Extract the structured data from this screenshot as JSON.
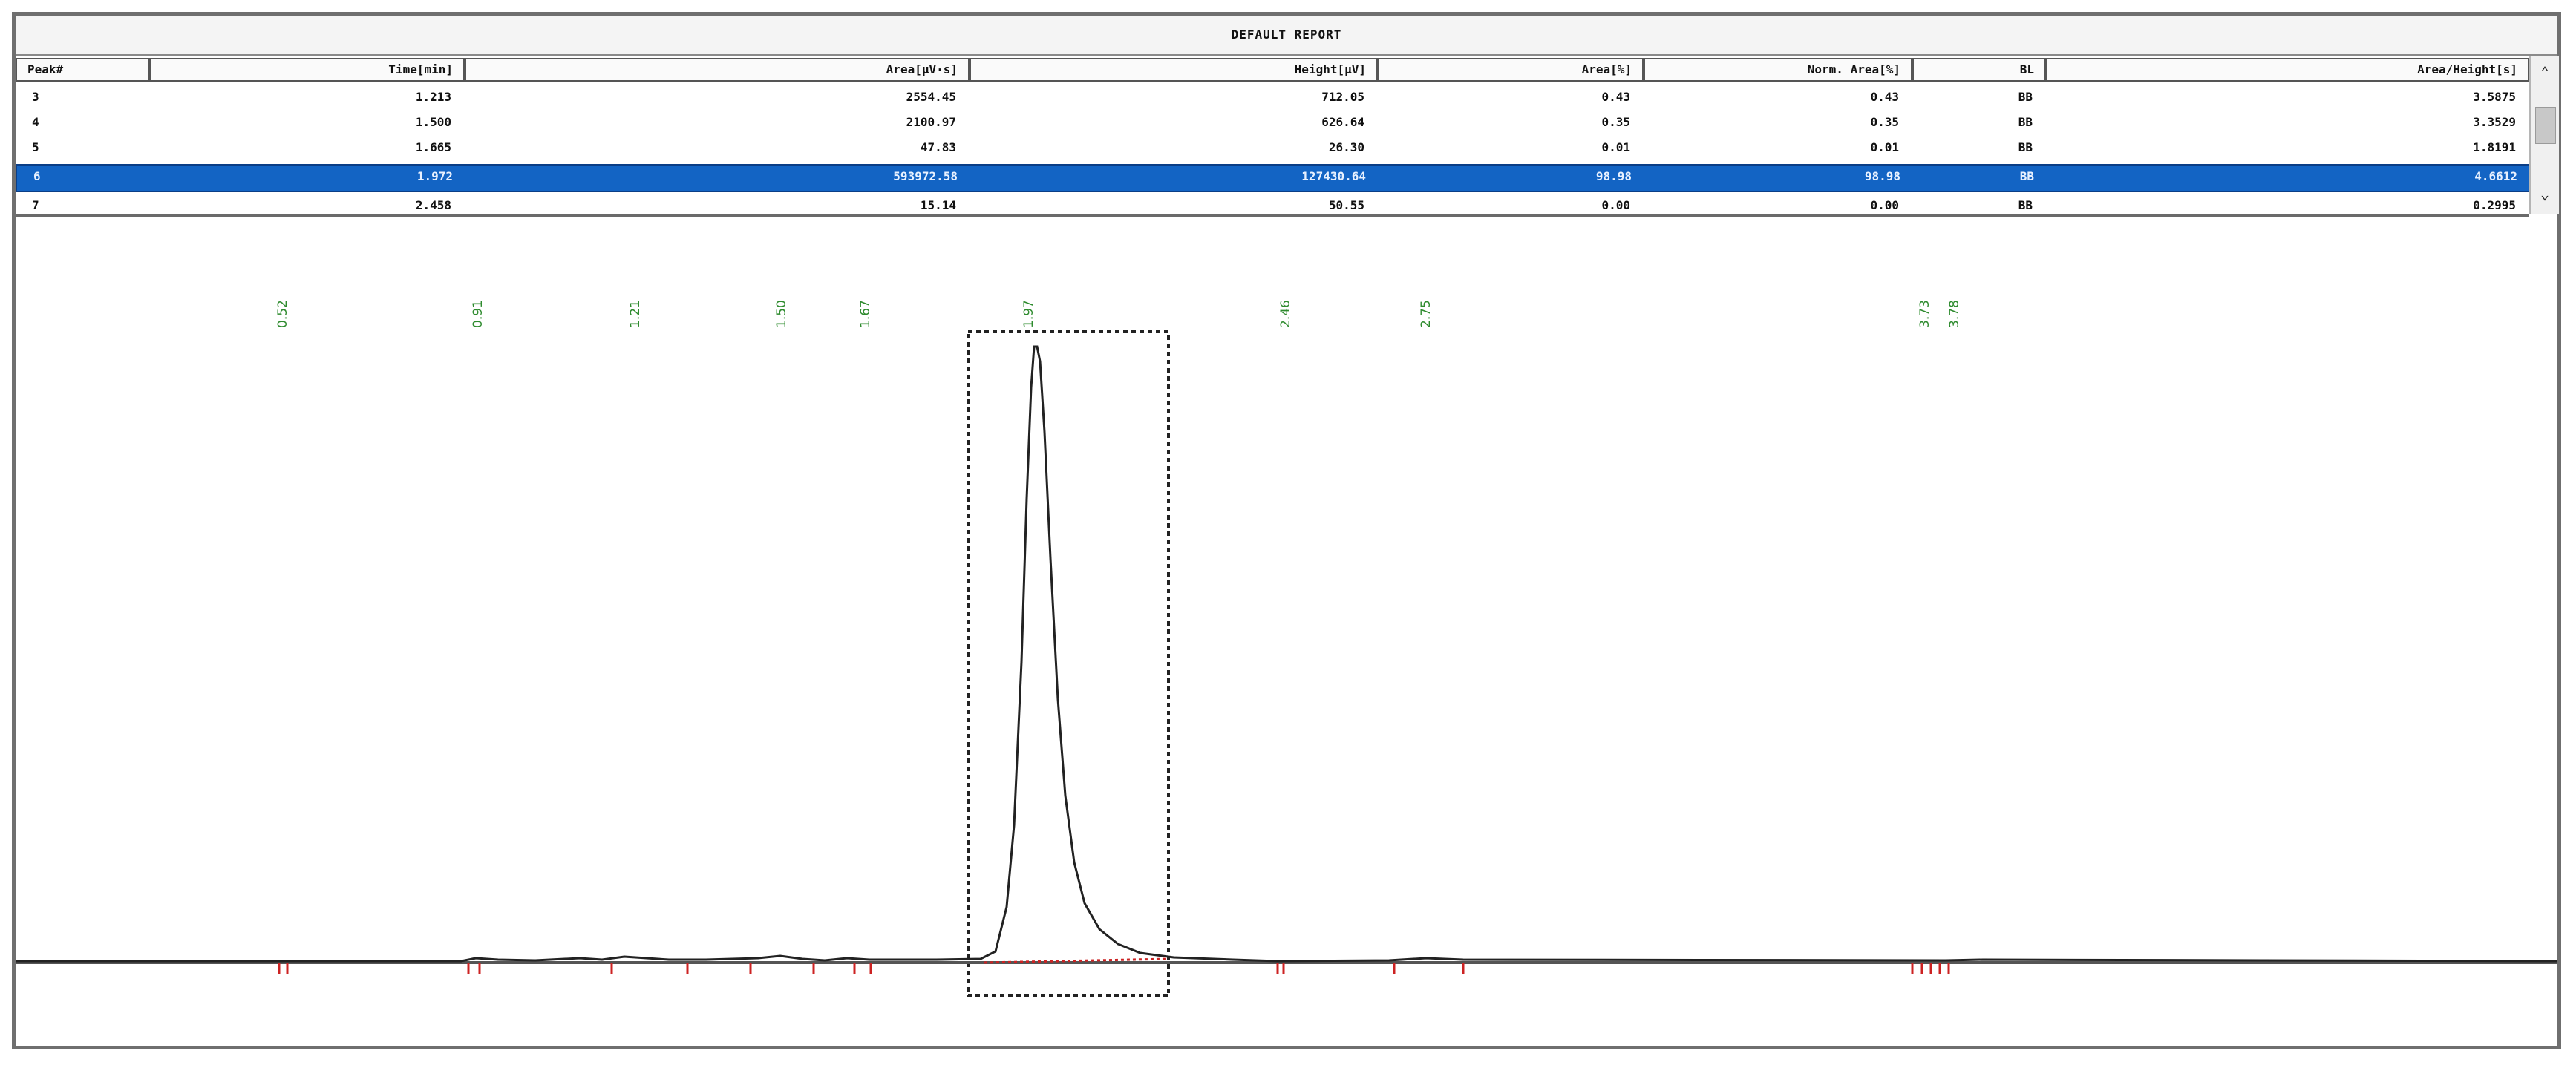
{
  "report": {
    "title": "DEFAULT REPORT"
  },
  "table": {
    "columns": [
      "Peak#",
      "Time[min]",
      "Area[µV·s]",
      "Height[µV]",
      "Area[%]",
      "Norm. Area[%]",
      "BL",
      "Area/Height[s]"
    ],
    "rows": [
      {
        "peak": "3",
        "time": "1.213",
        "area": "2554.45",
        "height": "712.05",
        "area_pct": "0.43",
        "norm_area_pct": "0.43",
        "bl": "BB",
        "area_height": "3.5875",
        "selected": false
      },
      {
        "peak": "4",
        "time": "1.500",
        "area": "2100.97",
        "height": "626.64",
        "area_pct": "0.35",
        "norm_area_pct": "0.35",
        "bl": "BB",
        "area_height": "3.3529",
        "selected": false
      },
      {
        "peak": "5",
        "time": "1.665",
        "area": "47.83",
        "height": "26.30",
        "area_pct": "0.01",
        "norm_area_pct": "0.01",
        "bl": "BB",
        "area_height": "1.8191",
        "selected": false
      },
      {
        "peak": "6",
        "time": "1.972",
        "area": "593972.58",
        "height": "127430.64",
        "area_pct": "98.98",
        "norm_area_pct": "98.98",
        "bl": "BB",
        "area_height": "4.6612",
        "selected": true
      },
      {
        "peak": "7",
        "time": "2.458",
        "area": "15.14",
        "height": "50.55",
        "area_pct": "0.00",
        "norm_area_pct": "0.00",
        "bl": "BB",
        "area_height": "0.2995",
        "selected": false
      }
    ]
  },
  "scrollbar": {
    "up_icon": "chevron-up-icon",
    "down_icon": "chevron-down-icon"
  },
  "chromatogram": {
    "peak_labels": [
      "0.52",
      "0.91",
      "1.21",
      "1.50",
      "1.67",
      "1.97",
      "2.46",
      "2.75",
      "3.73",
      "3.78"
    ],
    "colors": {
      "trace": "#222222",
      "label": "#2e8b2e",
      "marker": "#cc2222",
      "baseline": "#555555"
    }
  },
  "colors": {
    "selection": "#1364c4",
    "frame": "#6f6f6f"
  }
}
